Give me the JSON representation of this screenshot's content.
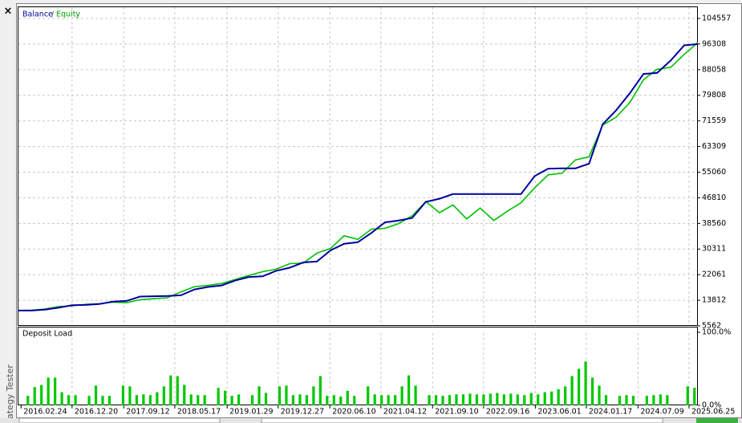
{
  "window": {
    "tab_label": "ategy Tester"
  },
  "chart_data": [
    {
      "type": "line",
      "legend_separator": "/",
      "xlim": [
        0,
        1000
      ],
      "ylim": [
        5562,
        108430
      ],
      "yticks": [
        5562,
        13812,
        22061,
        30311,
        38560,
        46810,
        55060,
        63309,
        71559,
        79808,
        88058,
        96308,
        104557
      ],
      "grid": true,
      "x": [
        0,
        20,
        40,
        60,
        80,
        100,
        120,
        140,
        160,
        180,
        200,
        220,
        240,
        260,
        280,
        300,
        320,
        340,
        360,
        380,
        400,
        420,
        440,
        460,
        480,
        500,
        520,
        540,
        560,
        580,
        600,
        620,
        640,
        660,
        680,
        700,
        720,
        740,
        760,
        780,
        800,
        820,
        840,
        860,
        880,
        900,
        920,
        940,
        960,
        980,
        1000
      ],
      "series": [
        {
          "name": "Balance",
          "color": "#0000a0",
          "values": [
            10500,
            10500,
            10800,
            11400,
            12200,
            12300,
            12600,
            13400,
            13600,
            15000,
            15100,
            15200,
            15400,
            17300,
            18100,
            18600,
            20200,
            21300,
            21500,
            23300,
            24300,
            26000,
            26300,
            29900,
            32000,
            32500,
            35500,
            38900,
            39500,
            40300,
            45500,
            46500,
            48000,
            48000,
            48000,
            48000,
            48000,
            48000,
            53800,
            56200,
            56300,
            56300,
            57800,
            70500,
            75000,
            80500,
            86700,
            87000,
            91000,
            95900,
            96300
          ]
        },
        {
          "name": "Equity",
          "color": "#00c000",
          "values": [
            10500,
            10600,
            11000,
            11800,
            12000,
            12500,
            12700,
            13200,
            13000,
            14000,
            14300,
            14600,
            16500,
            18200,
            18600,
            19200,
            20500,
            21800,
            23000,
            23800,
            25600,
            25800,
            29000,
            30500,
            34600,
            33400,
            36700,
            37000,
            38500,
            41000,
            45600,
            42000,
            44500,
            40000,
            43500,
            39500,
            42500,
            45200,
            50000,
            54200,
            54700,
            59000,
            60000,
            70200,
            72800,
            77500,
            84800,
            88200,
            88800,
            93000,
            96800
          ]
        }
      ]
    },
    {
      "type": "bar",
      "title": "Deposit Load",
      "color": "#00c800",
      "xlim": [
        0,
        1000
      ],
      "ylim": [
        0,
        100
      ],
      "yticks": [
        {
          "value": 100,
          "label": "100.0%"
        },
        {
          "value": 0,
          "label": "0.0%"
        }
      ],
      "xticks": [
        {
          "value": 5,
          "label": "2016.02.24"
        },
        {
          "value": 80,
          "label": "2016.12.20"
        },
        {
          "value": 156,
          "label": "2017.09.12"
        },
        {
          "value": 231,
          "label": "2018.05.17"
        },
        {
          "value": 308,
          "label": "2019.01.29"
        },
        {
          "value": 383,
          "label": "2019.12.27"
        },
        {
          "value": 459,
          "label": "2020.06.10"
        },
        {
          "value": 534,
          "label": "2021.04.12"
        },
        {
          "value": 610,
          "label": "2021.09.10"
        },
        {
          "value": 685,
          "label": "2022.09.16"
        },
        {
          "value": 761,
          "label": "2023.06.01"
        },
        {
          "value": 836,
          "label": "2024.01.17"
        },
        {
          "value": 912,
          "label": "2024.07.09"
        },
        {
          "value": 987,
          "label": "2025.06.25"
        }
      ],
      "x": [
        5,
        15,
        25,
        35,
        45,
        55,
        65,
        75,
        85,
        95,
        105,
        115,
        125,
        135,
        145,
        155,
        165,
        175,
        185,
        195,
        205,
        215,
        225,
        235,
        245,
        255,
        265,
        275,
        285,
        295,
        305,
        315,
        325,
        335,
        345,
        355,
        365,
        375,
        385,
        395,
        405,
        415,
        425,
        435,
        445,
        455,
        465,
        475,
        485,
        495,
        505,
        515,
        525,
        535,
        545,
        555,
        565,
        575,
        585,
        595,
        605,
        615,
        625,
        635,
        645,
        655,
        665,
        675,
        685,
        695,
        705,
        715,
        725,
        735,
        745,
        755,
        765,
        775,
        785,
        795,
        805,
        815,
        825,
        835,
        845,
        855,
        865,
        875,
        885,
        895,
        905,
        915,
        925,
        935,
        945,
        955,
        965,
        975,
        985,
        995
      ],
      "values": [
        0,
        13,
        25,
        28,
        38,
        38,
        18,
        14,
        14,
        0,
        13,
        27,
        13,
        13,
        0,
        27,
        26,
        14,
        15,
        14,
        18,
        26,
        41,
        40,
        28,
        15,
        14,
        14,
        0,
        24,
        20,
        13,
        15,
        0,
        14,
        26,
        17,
        0,
        26,
        27,
        14,
        15,
        14,
        26,
        40,
        13,
        14,
        12,
        20,
        13,
        0,
        26,
        15,
        14,
        14,
        14,
        26,
        41,
        27,
        0,
        14,
        14,
        13,
        14,
        15,
        15,
        16,
        15,
        15,
        16,
        17,
        15,
        16,
        15,
        14,
        17,
        15,
        18,
        19,
        22,
        26,
        40,
        50,
        60,
        38,
        27,
        14,
        0,
        13,
        14,
        13,
        0,
        13,
        14,
        15,
        14,
        0,
        0,
        26,
        24
      ]
    }
  ]
}
